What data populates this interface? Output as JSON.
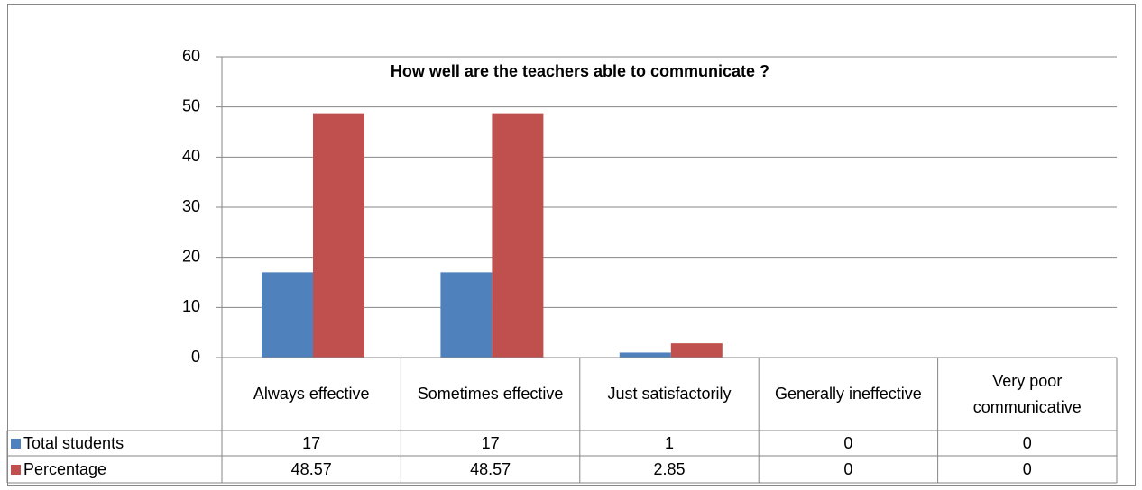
{
  "chart_data": {
    "type": "bar",
    "title": "How well are the teachers able to communicate ?",
    "categories": [
      "Always effective",
      "Sometimes effective",
      "Just satisfactorily",
      "Generally ineffective",
      "Very poor communicative"
    ],
    "series": [
      {
        "name": "Total students",
        "color": "#4f81bd",
        "values": [
          17,
          17,
          1,
          0,
          0
        ]
      },
      {
        "name": "Percentage",
        "color": "#c0504d",
        "values": [
          48.57,
          48.57,
          2.85,
          0,
          0
        ]
      }
    ],
    "ylim": [
      0,
      60
    ],
    "yticks": [
      0,
      10,
      20,
      30,
      40,
      50,
      60
    ],
    "grid": true
  }
}
